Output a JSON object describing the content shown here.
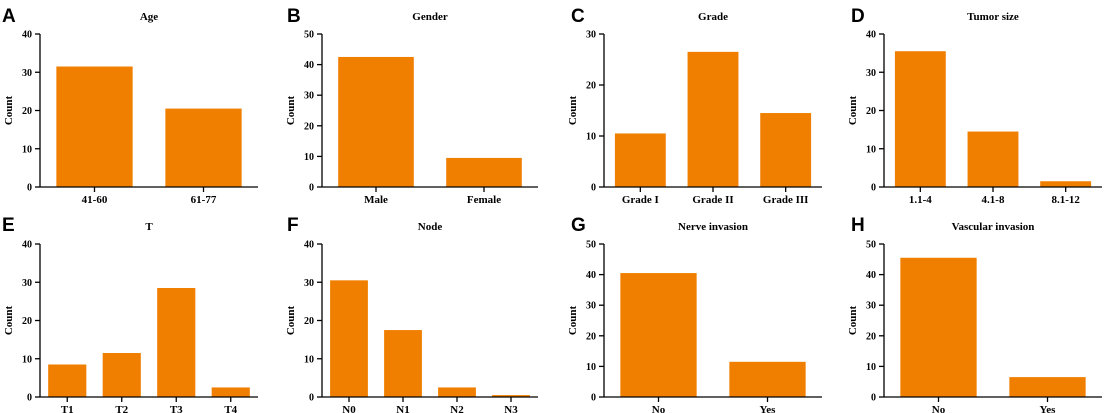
{
  "colors": {
    "bar": "#F07F00",
    "axis": "#000000"
  },
  "chart_data": [
    {
      "type": "bar",
      "panel": "A",
      "title": "Age",
      "ylabel": "Count",
      "categories": [
        "41-60",
        "61-77"
      ],
      "values": [
        31.5,
        20.5
      ],
      "ylim": [
        0,
        40
      ],
      "yticks": [
        "0",
        "10",
        "20",
        "30",
        "40"
      ]
    },
    {
      "type": "bar",
      "panel": "B",
      "title": "Gender",
      "ylabel": "Count",
      "categories": [
        "Male",
        "Female"
      ],
      "values": [
        42.5,
        9.5
      ],
      "ylim": [
        0,
        50
      ],
      "yticks": [
        "0",
        "10",
        "20",
        "30",
        "40",
        "50"
      ]
    },
    {
      "type": "bar",
      "panel": "C",
      "title": "Grade",
      "ylabel": "Count",
      "categories": [
        "Grade I",
        "Grade II",
        "Grade III"
      ],
      "values": [
        10.5,
        26.5,
        14.5
      ],
      "ylim": [
        0,
        30
      ],
      "yticks": [
        "0",
        "10",
        "20",
        "30"
      ]
    },
    {
      "type": "bar",
      "panel": "D",
      "title": "Tumor size",
      "ylabel": "Count",
      "categories": [
        "1.1-4",
        "4.1-8",
        "8.1-12"
      ],
      "values": [
        35.5,
        14.5,
        1.5
      ],
      "ylim": [
        0,
        40
      ],
      "yticks": [
        "0",
        "10",
        "20",
        "30",
        "40"
      ]
    },
    {
      "type": "bar",
      "panel": "E",
      "title": "T",
      "ylabel": "Count",
      "categories": [
        "T1",
        "T2",
        "T3",
        "T4"
      ],
      "values": [
        8.5,
        11.5,
        28.5,
        2.5
      ],
      "ylim": [
        0,
        40
      ],
      "yticks": [
        "0",
        "10",
        "20",
        "30",
        "40"
      ]
    },
    {
      "type": "bar",
      "panel": "F",
      "title": "Node",
      "ylabel": "Count",
      "categories": [
        "N0",
        "N1",
        "N2",
        "N3"
      ],
      "values": [
        30.5,
        17.5,
        2.5,
        0.5
      ],
      "ylim": [
        0,
        40
      ],
      "yticks": [
        "0",
        "10",
        "20",
        "30",
        "40"
      ]
    },
    {
      "type": "bar",
      "panel": "G",
      "title": "Nerve invasion",
      "ylabel": "Count",
      "categories": [
        "No",
        "Yes"
      ],
      "values": [
        40.5,
        11.5
      ],
      "ylim": [
        0,
        50
      ],
      "yticks": [
        "0",
        "10",
        "20",
        "30",
        "40",
        "50"
      ]
    },
    {
      "type": "bar",
      "panel": "H",
      "title": "Vascular invasion",
      "ylabel": "Count",
      "categories": [
        "No",
        "Yes"
      ],
      "values": [
        45.5,
        6.5
      ],
      "ylim": [
        0,
        50
      ],
      "yticks": [
        "0",
        "10",
        "20",
        "30",
        "40",
        "50"
      ]
    }
  ]
}
